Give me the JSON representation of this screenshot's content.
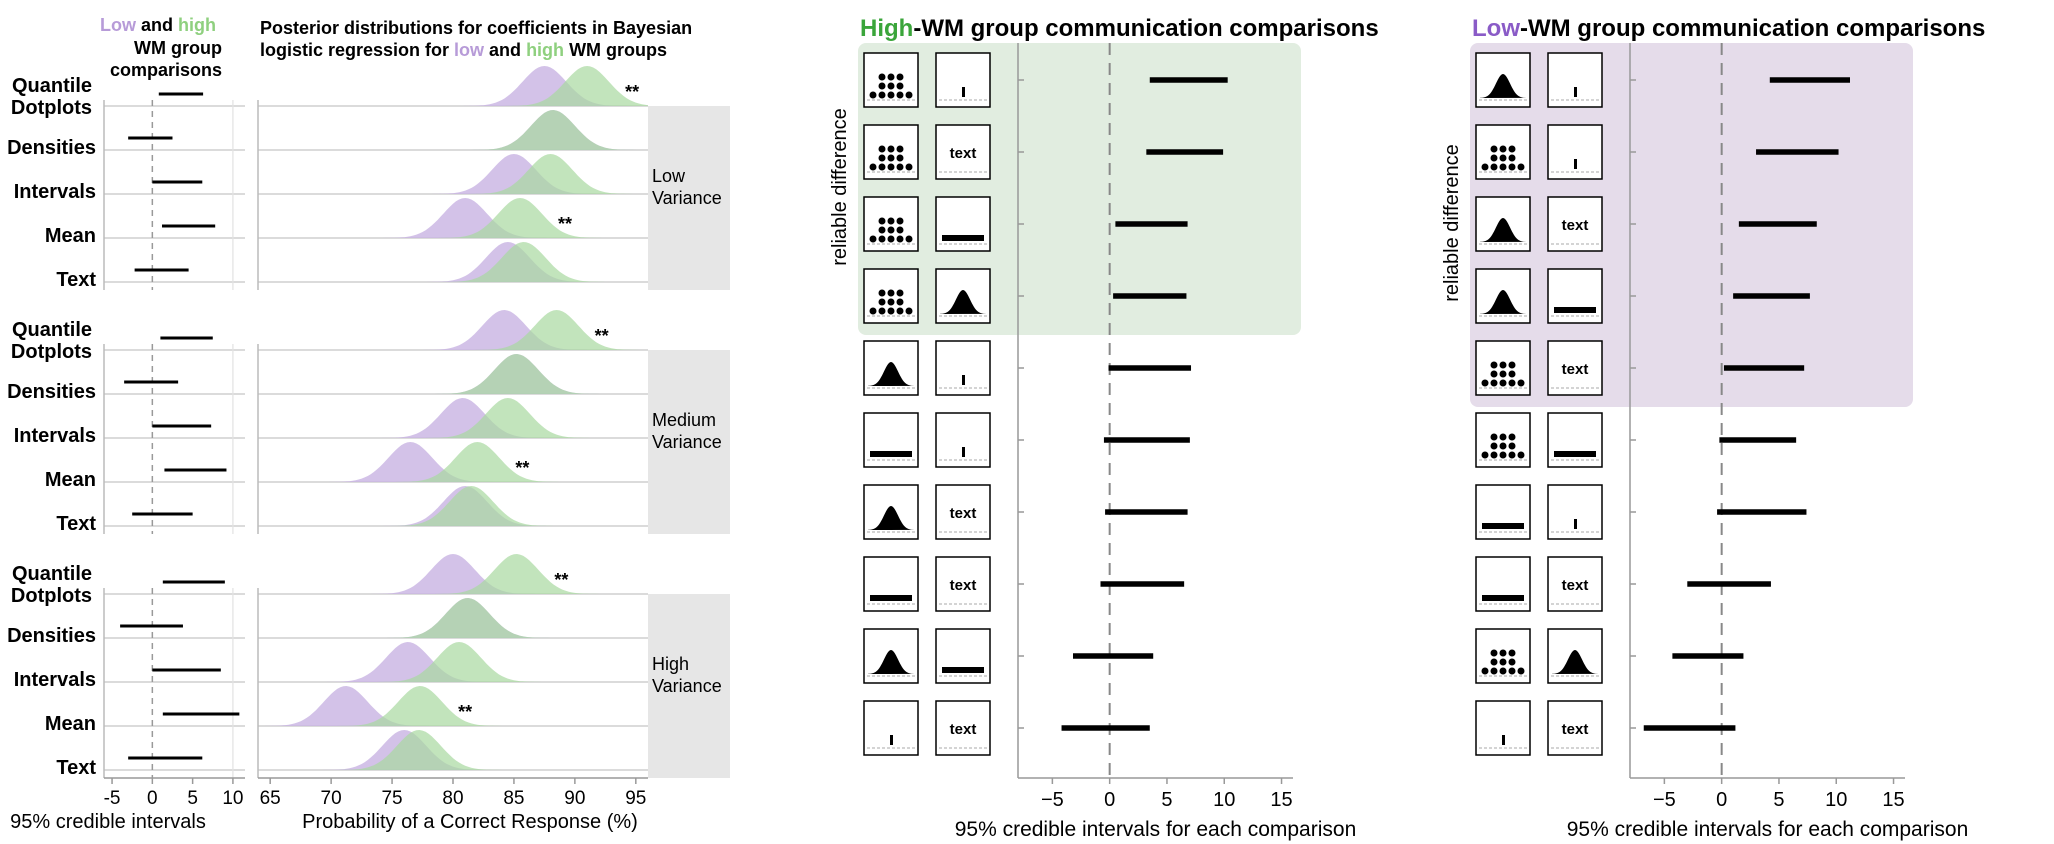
{
  "colors": {
    "low": "#b79bd8",
    "high": "#8fd07f",
    "low_fill": "#c8b3e2",
    "high_fill": "#a8d8a0",
    "overlap": "#8aa88a",
    "high_title": "#3aa53a",
    "low_title": "#8a5bc7",
    "green_bg": "#e1ede0",
    "purple_bg": "#e5dcea",
    "band_bg": "#e6e6e6"
  },
  "left": {
    "title_low": "Low",
    "title_and": " and ",
    "title_high": "high",
    "title_line2": "WM group",
    "title_line3": "comparisons",
    "xlabel": "95% credible intervals",
    "xticks": [
      -5,
      0,
      5,
      10
    ],
    "xlim": [
      -6,
      11.5
    ]
  },
  "mid": {
    "title_line1": "Posterior distributions for coefficients in Bayesian",
    "title_line2_a": "logistic regression for ",
    "title_line2_low": "low",
    "title_line2_b": " and ",
    "title_line2_high": "high",
    "title_line2_c": " WM groups",
    "xlabel": "Probability of a Correct Response (%)",
    "xticks": [
      65,
      70,
      75,
      80,
      85,
      90,
      95
    ],
    "xlim": [
      64,
      96
    ]
  },
  "row_labels": [
    "Quantile Dotplots",
    "Densities",
    "Intervals",
    "Mean",
    "Text"
  ],
  "row_label_quantile_1": "Quantile",
  "row_label_quantile_2": "Dotplots",
  "groups": [
    {
      "label_1": "Low",
      "label_2": "Variance",
      "ci": [
        [
          0.8,
          6.3
        ],
        [
          -3,
          2.5
        ],
        [
          0,
          6.2
        ],
        [
          1.2,
          7.8
        ],
        [
          -2.2,
          4.5
        ]
      ],
      "dens": [
        {
          "low": 87.5,
          "high": 91
        },
        {
          "low": 88.2,
          "high": 88.2
        },
        {
          "low": 85,
          "high": 88
        },
        {
          "low": 81,
          "high": 85.5
        },
        {
          "low": 84.5,
          "high": 85.8
        }
      ],
      "sig": [
        true,
        false,
        false,
        true,
        false
      ]
    },
    {
      "label_1": "Medium",
      "label_2": "Variance",
      "ci": [
        [
          1,
          7.5
        ],
        [
          -3.5,
          3.2
        ],
        [
          0,
          7.3
        ],
        [
          1.5,
          9.2
        ],
        [
          -2.5,
          5
        ]
      ],
      "dens": [
        {
          "low": 84.2,
          "high": 88.5
        },
        {
          "low": 85.2,
          "high": 85.2
        },
        {
          "low": 80.8,
          "high": 84.5
        },
        {
          "low": 76.5,
          "high": 82
        },
        {
          "low": 81,
          "high": 81.5
        }
      ],
      "sig": [
        true,
        false,
        false,
        true,
        false
      ]
    },
    {
      "label_1": "High",
      "label_2": "Variance",
      "ci": [
        [
          1.3,
          9
        ],
        [
          -4,
          3.8
        ],
        [
          0,
          8.5
        ],
        [
          1.3,
          10.8
        ],
        [
          -3,
          6.2
        ]
      ],
      "dens": [
        {
          "low": 80,
          "high": 85.2
        },
        {
          "low": 81.2,
          "high": 81.2
        },
        {
          "low": 76.3,
          "high": 80.5
        },
        {
          "low": 71.2,
          "high": 77.3
        },
        {
          "low": 76,
          "high": 77.2
        }
      ],
      "sig": [
        true,
        false,
        false,
        true,
        false
      ]
    }
  ],
  "sig_label": "**",
  "high_panel": {
    "title_a": "High",
    "title_b": "-WM group communication comparisons",
    "xlabel": "95% credible intervals for each comparison",
    "reliable": "reliable difference",
    "xticks": [
      -5,
      0,
      5,
      10,
      15
    ],
    "xlim": [
      -8,
      16
    ],
    "n_reliable": 4,
    "rows": [
      {
        "a": "dotplot",
        "b": "tick",
        "ci": [
          3.5,
          10.3
        ]
      },
      {
        "a": "dotplot",
        "b": "text",
        "ci": [
          3.2,
          9.9
        ]
      },
      {
        "a": "dotplot",
        "b": "bar",
        "ci": [
          0.5,
          6.8
        ]
      },
      {
        "a": "dotplot",
        "b": "density",
        "ci": [
          0.3,
          6.7
        ]
      },
      {
        "a": "density",
        "b": "tick",
        "ci": [
          -0.1,
          7.1
        ]
      },
      {
        "a": "bar",
        "b": "tick",
        "ci": [
          -0.5,
          7
        ]
      },
      {
        "a": "density",
        "b": "text",
        "ci": [
          -0.4,
          6.8
        ]
      },
      {
        "a": "bar",
        "b": "text",
        "ci": [
          -0.8,
          6.5
        ]
      },
      {
        "a": "density",
        "b": "bar",
        "ci": [
          -3.2,
          3.8
        ]
      },
      {
        "a": "tick",
        "b": "text",
        "ci": [
          -4.2,
          3.5
        ]
      }
    ]
  },
  "low_panel": {
    "title_a": "Low",
    "title_b": "-WM group communication comparisons",
    "xlabel": "95% credible intervals for each comparison",
    "reliable": "reliable difference",
    "xticks": [
      -5,
      0,
      5,
      10,
      15
    ],
    "xlim": [
      -8,
      16
    ],
    "n_reliable": 5,
    "rows": [
      {
        "a": "density",
        "b": "tick",
        "ci": [
          4.2,
          11.2
        ]
      },
      {
        "a": "dotplot",
        "b": "tick",
        "ci": [
          3,
          10.2
        ]
      },
      {
        "a": "density",
        "b": "text",
        "ci": [
          1.5,
          8.3
        ]
      },
      {
        "a": "density",
        "b": "bar",
        "ci": [
          1,
          7.7
        ]
      },
      {
        "a": "dotplot",
        "b": "text",
        "ci": [
          0.2,
          7.2
        ]
      },
      {
        "a": "dotplot",
        "b": "bar",
        "ci": [
          -0.2,
          6.5
        ]
      },
      {
        "a": "bar",
        "b": "tick",
        "ci": [
          -0.4,
          7.4
        ]
      },
      {
        "a": "bar",
        "b": "text",
        "ci": [
          -3,
          4.3
        ]
      },
      {
        "a": "dotplot",
        "b": "density",
        "ci": [
          -4.3,
          1.9
        ]
      },
      {
        "a": "tick",
        "b": "text",
        "ci": [
          -6.8,
          1.2
        ]
      }
    ]
  },
  "icon_text": "text",
  "chart_data": [
    {
      "type": "interval",
      "title": "Low and high WM group comparisons",
      "xlabel": "95% credible intervals",
      "groups": [
        "Low Variance",
        "Medium Variance",
        "High Variance"
      ],
      "categories": [
        "Quantile Dotplots",
        "Densities",
        "Intervals",
        "Mean",
        "Text"
      ]
    },
    {
      "type": "area",
      "title": "Posterior distributions for coefficients in Bayesian logistic regression for low and high WM groups",
      "xlabel": "Probability of a Correct Response (%)",
      "series": [
        "low",
        "high"
      ]
    },
    {
      "type": "interval",
      "title": "High-WM group communication comparisons",
      "xlabel": "95% credible intervals for each comparison"
    },
    {
      "type": "interval",
      "title": "Low-WM group communication comparisons",
      "xlabel": "95% credible intervals for each comparison"
    }
  ]
}
